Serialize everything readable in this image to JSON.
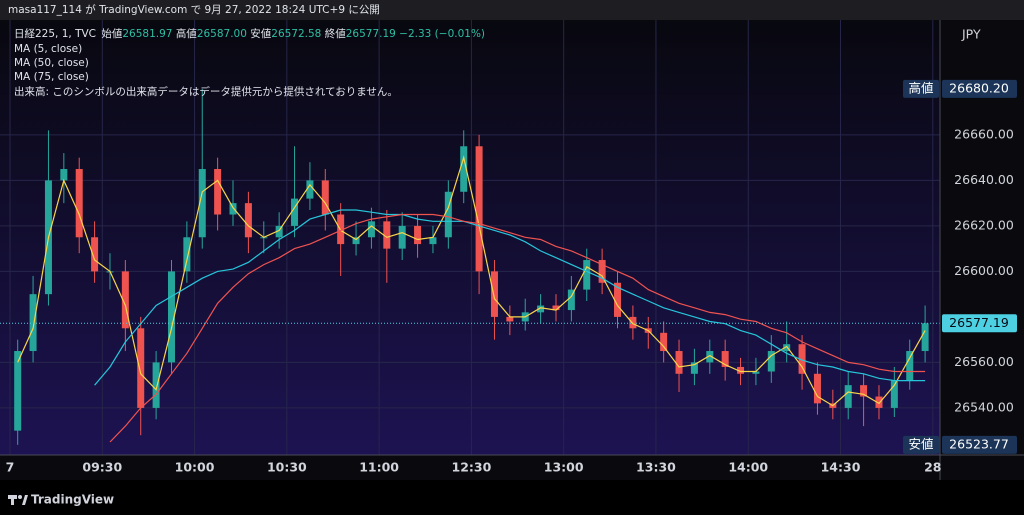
{
  "header": {
    "published": "masa117_114 が TradingView.com で 9月 27, 2022 18:24 UTC+9 に公開"
  },
  "footer": {
    "brand": "TradingView"
  },
  "chart_data": {
    "type": "candlestick",
    "legend": {
      "symbol": "日経225, 1, TVC",
      "open_label": "始値",
      "open": "26581.97",
      "high_label": "高値",
      "high": "26587.00",
      "low_label": "安値",
      "low": "26572.58",
      "close_label": "終値",
      "close": "26577.19",
      "change": "−2.33 (−0.01%)",
      "volume_note": "出来高: このシンボルの出来高データはデータ提供元から提供されておりません。"
    },
    "currency": "JPY",
    "up_color": "#26a69a",
    "down_color": "#ef5350",
    "categories": [
      "7",
      null,
      null,
      null,
      null,
      null,
      "09:30",
      null,
      null,
      null,
      null,
      null,
      "10:00",
      null,
      null,
      null,
      null,
      null,
      "10:30",
      null,
      null,
      null,
      null,
      null,
      "11:00",
      null,
      null,
      null,
      null,
      null,
      "12:30",
      null,
      null,
      null,
      null,
      null,
      "13:00",
      null,
      null,
      null,
      null,
      null,
      "13:30",
      null,
      null,
      null,
      null,
      null,
      "14:00",
      null,
      null,
      null,
      null,
      null,
      "14:30",
      null,
      null,
      null,
      null,
      null,
      "28"
    ],
    "open": [
      26530,
      26565,
      26590,
      26640,
      26645,
      26615,
      26600,
      26600,
      26575,
      26540,
      26560,
      26600,
      26615,
      26645,
      26625,
      26630,
      26615,
      26615,
      26620,
      26632,
      26640,
      26625,
      26612,
      26615,
      26622,
      26610,
      26620,
      26612,
      26615,
      26635,
      26655,
      26600,
      26580,
      26578,
      26582,
      26585,
      26583,
      26592,
      26605,
      26595,
      26580,
      26575,
      26573,
      26565,
      26555,
      26560,
      26565,
      26558,
      26555,
      26556,
      26565,
      26568,
      26555,
      26542,
      26540,
      26550,
      26545,
      26540,
      26552,
      26565,
      null
    ],
    "high": [
      26570,
      26598,
      26662,
      26652,
      26650,
      26622,
      26608,
      26605,
      26580,
      26565,
      26605,
      26622,
      26680.2,
      26650,
      26640,
      26635,
      26622,
      26626,
      26655,
      26648,
      26645,
      26630,
      26622,
      26628,
      26627,
      26626,
      26625,
      26620,
      26640,
      26662,
      26660,
      26605,
      26585,
      26588,
      26590,
      26590,
      26598,
      26610,
      26610,
      26600,
      26585,
      26580,
      26578,
      26570,
      26566,
      26570,
      26570,
      26562,
      26562,
      26572,
      26578,
      26572,
      26560,
      26548,
      26556,
      26555,
      26550,
      26558,
      26570,
      26585,
      null
    ],
    "low": [
      26523.77,
      26560,
      26585,
      26630,
      26608,
      26595,
      26592,
      26565,
      26528,
      26535,
      26555,
      26595,
      26610,
      26618,
      26620,
      26608,
      26608,
      26610,
      26615,
      26627,
      26618,
      26598,
      26607,
      26610,
      26595,
      26605,
      26606,
      26608,
      26610,
      26630,
      26590,
      26570,
      26572,
      26574,
      26577,
      26578,
      26578,
      26587,
      26590,
      26575,
      26570,
      26566,
      26560,
      26547,
      26550,
      26555,
      26552,
      26550,
      26550,
      26551,
      26560,
      26548,
      26537,
      26535,
      26535,
      26532,
      26535,
      26536,
      26548,
      26560,
      null
    ],
    "close": [
      26565,
      26590,
      26640,
      26645,
      26615,
      26600,
      26600,
      26575,
      26540,
      26560,
      26600,
      26615,
      26645,
      26625,
      26630,
      26615,
      26615,
      26620,
      26632,
      26640,
      26625,
      26612,
      26615,
      26622,
      26610,
      26620,
      26612,
      26615,
      26635,
      26655,
      26600,
      26580,
      26578,
      26582,
      26585,
      26583,
      26592,
      26605,
      26595,
      26580,
      26575,
      26573,
      26565,
      26555,
      26560,
      26565,
      26558,
      26555,
      26556,
      26565,
      26568,
      26555,
      26542,
      26540,
      26550,
      26545,
      26540,
      26552,
      26565,
      26577.19,
      null
    ],
    "series": [
      {
        "name": "MA (5, close)",
        "color": "#f7d54a",
        "values": [
          26560,
          26575,
          26615,
          26640,
          26625,
          26605,
          26600,
          26585,
          26555,
          26548,
          26575,
          26605,
          26635,
          26640,
          26628,
          26620,
          26615,
          26618,
          26628,
          26638,
          26630,
          26618,
          26614,
          26620,
          26615,
          26617,
          26614,
          26615,
          26628,
          26650,
          26620,
          26588,
          26580,
          26580,
          26584,
          26583,
          26589,
          26602,
          26598,
          26585,
          26577,
          26574,
          26567,
          26558,
          26559,
          26563,
          26559,
          26556,
          26556,
          26563,
          26567,
          26558,
          26545,
          26541,
          26547,
          26546,
          26542,
          26550,
          26562,
          26574,
          null
        ]
      },
      {
        "name": "MA (50, close)",
        "color": "#26c6da",
        "values": [
          null,
          null,
          null,
          null,
          null,
          26550,
          26558,
          26569,
          26577,
          26585,
          26589,
          26593,
          26597,
          26600,
          26601,
          26604,
          26609,
          26614,
          26618,
          26623,
          26625,
          26627,
          26627,
          26626,
          26625,
          26625,
          26623,
          26622,
          26622,
          26622,
          26620,
          26618,
          26616,
          26613,
          26609,
          26606,
          26603,
          26600,
          26597,
          26593,
          26590,
          26587,
          26584,
          26582,
          26580,
          26578,
          26577,
          26574,
          26572,
          26568,
          26564,
          26561,
          26559,
          26558,
          26556,
          26555,
          26553,
          26552,
          26552,
          26552,
          null
        ]
      },
      {
        "name": "MA (75, close)",
        "color": "#ef5350",
        "values": [
          null,
          null,
          null,
          null,
          null,
          null,
          26525,
          26532,
          26540,
          26546,
          26555,
          26564,
          26575,
          26586,
          26593,
          26599,
          26603,
          26606,
          26610,
          26612,
          26615,
          26618,
          26621,
          26623,
          26624,
          26625,
          26625,
          26625,
          26624,
          26622,
          26621,
          26619,
          26617,
          26615,
          26614,
          26611,
          26609,
          26606,
          26603,
          26600,
          26597,
          26592,
          26589,
          26586,
          26584,
          26582,
          26581,
          26579,
          26578,
          26575,
          26573,
          26569,
          26566,
          26563,
          26560,
          26559,
          26557,
          26556,
          26556,
          26556,
          null
        ]
      }
    ],
    "high_mark": {
      "tag": "高値",
      "value": 26680.2,
      "label": "26680.20"
    },
    "low_mark": {
      "tag": "安値",
      "value": 26523.77,
      "label": "26523.77"
    },
    "ylim": [
      26519.3,
      26710.5
    ],
    "yticks": [
      {
        "value": 26540,
        "label": "26540.00"
      },
      {
        "value": 26560,
        "label": "26560.00"
      },
      {
        "value": 26600,
        "label": "26600.00"
      },
      {
        "value": 26620,
        "label": "26620.00"
      },
      {
        "value": 26640,
        "label": "26640.00"
      },
      {
        "value": 26660,
        "label": "26660.00"
      }
    ],
    "grid": true
  }
}
